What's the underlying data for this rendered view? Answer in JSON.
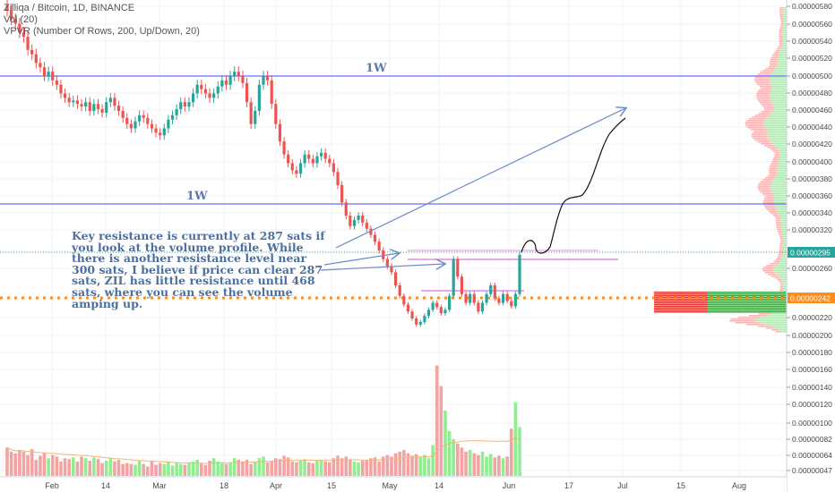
{
  "legend": {
    "title": "Zilliqa / Bitcoin, 1D, BINANCE",
    "vol": "Vol (20)",
    "vpvr": "VPVR (Number Of Rows, 200, Up/Down, 20)"
  },
  "annotation": "Key resistance is currently at 287 sats if you look at the volume profile. While there is another resistance level near 300 sats, I believe if price can clear 287 sats, ZIL has little resistance until 468 sats, where you can see the volume amping up.",
  "levels": {
    "upper_label": "1W",
    "lower_label": "1W",
    "upper": 5e-06,
    "lower": 3.51e-06
  },
  "colors": {
    "up": "#26a69a",
    "down": "#ef5350",
    "volume_up": "#90ee90",
    "volume_down": "#f4a3a3",
    "level_line": "#6b6bff",
    "arrow": "#6a8cc7",
    "orange": "#ff8c1a"
  },
  "chart_data": {
    "type": "candlestick",
    "y_axis_ticks": [
      "0.00000580",
      "0.00000560",
      "0.00000540",
      "0.00000520",
      "0.00000500",
      "0.00000480",
      "0.00000460",
      "0.00000440",
      "0.00000420",
      "0.00000400",
      "0.00000380",
      "0.00000360",
      "0.00000340",
      "0.00000320",
      "0.00000295",
      "0.00000260",
      "0.00000242",
      "0.00000220",
      "0.00000200",
      "0.00000180",
      "0.00000160",
      "0.00000140",
      "0.00000120",
      "0.00000100",
      "0.00000082",
      "0.00000064",
      "0.00000047"
    ],
    "current_price_label": "0.00000295",
    "orange_level_label": "0.00000242",
    "x_axis_labels": [
      "Feb",
      "14",
      "Mar",
      "18",
      "Apr",
      "15",
      "May",
      "14",
      "Jun",
      "17",
      "Jul",
      "15",
      "Aug"
    ],
    "price_range": [
      2e-06,
      5.87e-06
    ],
    "closes": [
      5.75e-06,
      5.65e-06,
      5.6e-06,
      5.5e-06,
      5.45e-06,
      5.3e-06,
      5.25e-06,
      5.15e-06,
      5.1e-06,
      5e-06,
      5.05e-06,
      4.95e-06,
      4.9e-06,
      4.8e-06,
      4.75e-06,
      4.7e-06,
      4.72e-06,
      4.68e-06,
      4.65e-06,
      4.7e-06,
      4.6e-06,
      4.68e-06,
      4.62e-06,
      4.58e-06,
      4.7e-06,
      4.75e-06,
      4.66e-06,
      4.6e-06,
      4.52e-06,
      4.45e-06,
      4.4e-06,
      4.48e-06,
      4.55e-06,
      4.52e-06,
      4.45e-06,
      4.4e-06,
      4.35e-06,
      4.32e-06,
      4.4e-06,
      4.5e-06,
      4.55e-06,
      4.62e-06,
      4.7e-06,
      4.65e-06,
      4.7e-06,
      4.8e-06,
      4.9e-06,
      4.85e-06,
      4.8e-06,
      4.75e-06,
      4.8e-06,
      4.88e-06,
      4.95e-06,
      4.9e-06,
      5e-06,
      5.05e-06,
      5e-06,
      4.92e-06,
      4.7e-06,
      4.45e-06,
      4.6e-06,
      4.9e-06,
      5e-06,
      4.95e-06,
      4.68e-06,
      4.45e-06,
      4.25e-06,
      4.1e-06,
      4e-06,
      3.92e-06,
      3.88e-06,
      4e-06,
      4.1e-06,
      4.05e-06,
      4e-06,
      4.08e-06,
      4.12e-06,
      4.05e-06,
      4e-06,
      3.9e-06,
      3.75e-06,
      3.55e-06,
      3.4e-06,
      3.28e-06,
      3.35e-06,
      3.4e-06,
      3.32e-06,
      3.25e-06,
      3.18e-06,
      3.1e-06,
      3e-06,
      2.9e-06,
      2.82e-06,
      2.75e-06,
      2.6e-06,
      2.48e-06,
      2.38e-06,
      2.3e-06,
      2.22e-06,
      2.15e-06,
      2.18e-06,
      2.25e-06,
      2.32e-06,
      2.4e-06,
      2.35e-06,
      2.28e-06,
      2.32e-06,
      2.48e-06,
      2.9e-06,
      2.7e-06,
      2.5e-06,
      2.4e-06,
      2.5e-06,
      2.4e-06,
      2.3e-06,
      2.4e-06,
      2.5e-06,
      2.6e-06,
      2.45e-06,
      2.4e-06,
      2.5e-06,
      2.42e-06,
      2.36e-06,
      2.5e-06,
      2.95e-06
    ],
    "volume_range": [
      4e-07,
      1.8e-06
    ],
    "volumes": [
      7.5e-07,
      7e-07,
      6.8e-07,
      7.2e-07,
      7e-07,
      6.6e-07,
      7.3e-07,
      6e-07,
      6.5e-07,
      6.8e-07,
      6.2e-07,
      6.6e-07,
      6.4e-07,
      5.8e-07,
      6.2e-07,
      6.1e-07,
      6.3e-07,
      5.8e-07,
      6.4e-07,
      6.2e-07,
      5.9e-07,
      6.3e-07,
      6.1e-07,
      5.6e-07,
      5.9e-07,
      6.2e-07,
      5.8e-07,
      6e-07,
      5.5e-07,
      5.6e-07,
      5.5e-07,
      5.4e-07,
      5.9e-07,
      5.5e-07,
      5.2e-07,
      5.8e-07,
      5.4e-07,
      5.6e-07,
      5.5e-07,
      5.8e-07,
      5.3e-07,
      5.7e-07,
      5.5e-07,
      5.4e-07,
      5.7e-07,
      5.8e-07,
      6e-07,
      5.6e-07,
      5.4e-07,
      5.9e-07,
      6.2e-07,
      5.8e-07,
      5.6e-07,
      5.5e-07,
      5.6e-07,
      6.2e-07,
      6e-07,
      5.8e-07,
      6e-07,
      5.5e-07,
      5.7e-07,
      6.2e-07,
      6.4e-07,
      5.7e-07,
      5.8e-07,
      6.2e-07,
      6.1e-07,
      6.5e-07,
      6.3e-07,
      5.8e-07,
      5.7e-07,
      5.9e-07,
      6.1e-07,
      5.7e-07,
      5.6e-07,
      5.9e-07,
      6e-07,
      5.8e-07,
      5.7e-07,
      6.2e-07,
      6.5e-07,
      6.2e-07,
      6.4e-07,
      6e-07,
      5.8e-07,
      5.7e-07,
      5.9e-07,
      6e-07,
      6.2e-07,
      6.3e-07,
      5.8e-07,
      6.4e-07,
      6.6e-07,
      6.4e-07,
      6.8e-07,
      7e-07,
      7.2e-07,
      6.8e-07,
      6.5e-07,
      6.7e-07,
      6.3e-07,
      6.6e-07,
      6.2e-07,
      7.8e-07,
      1.75e-06,
      1.5e-06,
      1.2e-06,
      9.5e-07,
      8.5e-07,
      8e-07,
      7.5e-07,
      7e-07,
      7.2e-07,
      6.8e-07,
      6.6e-07,
      7e-07,
      6.4e-07,
      6.7e-07,
      6.3e-07,
      6.5e-07,
      6.2e-07,
      6.4e-07,
      9.8e-07,
      1.3e-06,
      1e-06
    ]
  }
}
